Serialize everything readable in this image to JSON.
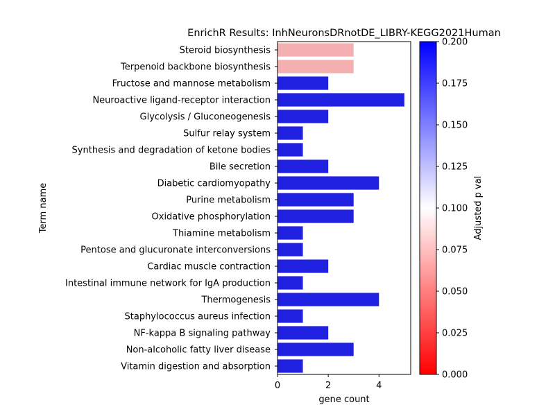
{
  "chart_data": {
    "type": "bar",
    "orientation": "horizontal",
    "title": "EnrichR Results: InhNeuronsDRnotDE_LIBRY-KEGG2021Human",
    "xlabel": "gene count",
    "ylabel": "Term name",
    "xlim": [
      0,
      5.25
    ],
    "xticks": [
      "0",
      "2",
      "4"
    ],
    "grid": false,
    "categories": [
      "Steroid biosynthesis",
      "Terpenoid backbone biosynthesis",
      "Fructose and mannose metabolism",
      "Neuroactive ligand-receptor interaction",
      "Glycolysis / Gluconeogenesis",
      "Sulfur relay system",
      "Synthesis and degradation of ketone bodies",
      "Bile secretion",
      "Diabetic cardiomyopathy",
      "Purine metabolism",
      "Oxidative phosphorylation",
      "Thiamine metabolism",
      "Pentose and glucuronate interconversions",
      "Cardiac muscle contraction",
      "Intestinal immune network for IgA production",
      "Thermogenesis",
      "Staphylococcus aureus infection",
      "NF-kappa B signaling pathway",
      "Non-alcoholic fatty liver disease",
      "Vitamin digestion and absorption"
    ],
    "values": [
      3,
      3,
      2,
      5,
      2,
      1,
      1,
      2,
      4,
      3,
      3,
      1,
      1,
      2,
      1,
      4,
      1,
      2,
      3,
      1
    ],
    "bar_colors": [
      "#f4b0b0",
      "#f4b0b0",
      "#2020e0",
      "#2020e0",
      "#2020e0",
      "#2020e0",
      "#2020e0",
      "#2020e0",
      "#2020e0",
      "#2020e0",
      "#2020e0",
      "#2020e0",
      "#2020e0",
      "#2020e0",
      "#2020e0",
      "#2020e0",
      "#2020e0",
      "#2020e0",
      "#2020e0",
      "#2020e0"
    ],
    "colorbar": {
      "label": "Adjusted p val",
      "range": [
        0,
        0.2
      ],
      "ticks": [
        "0.000",
        "0.025",
        "0.050",
        "0.075",
        "0.100",
        "0.125",
        "0.150",
        "0.175",
        "0.200"
      ],
      "colors": [
        "#ff0000",
        "#ffffff",
        "#0000ff"
      ]
    }
  }
}
